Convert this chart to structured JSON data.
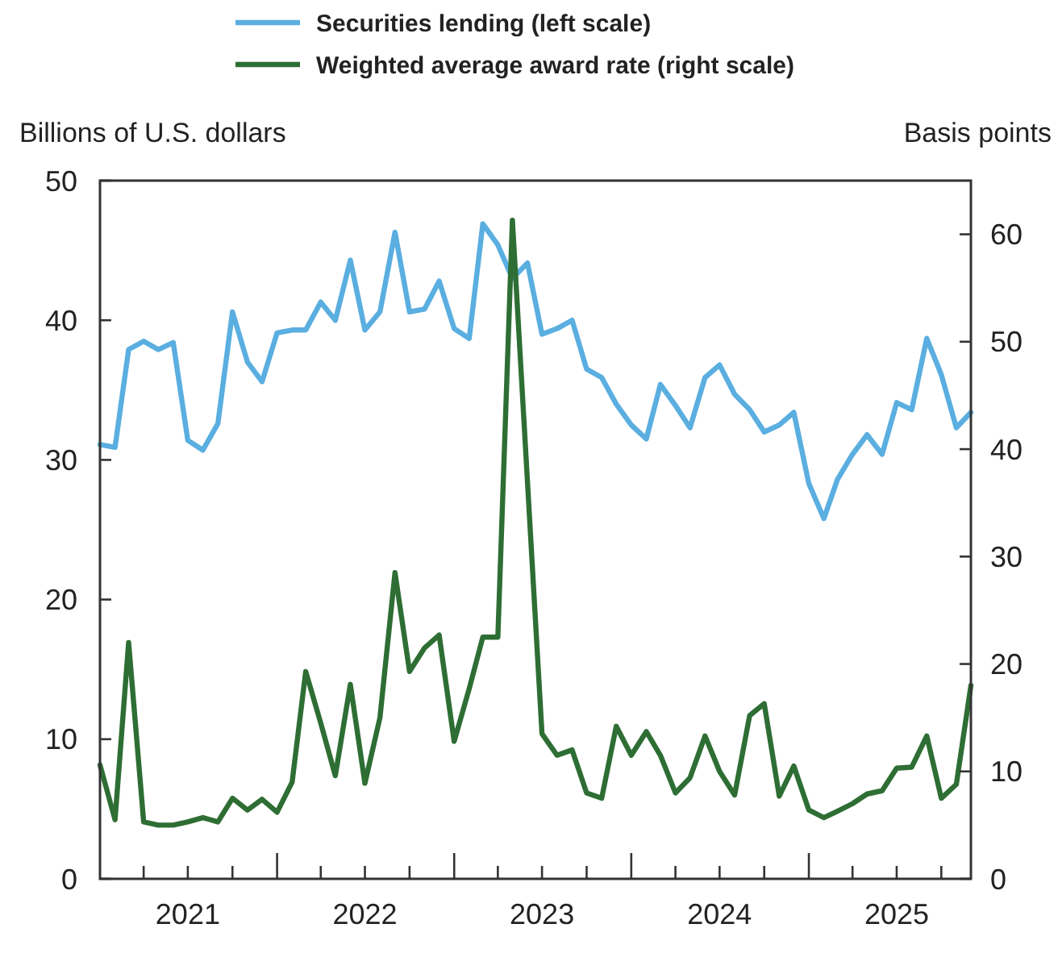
{
  "chart_data": {
    "type": "line",
    "ylabel": "Billions of U.S. dollars",
    "y2label": "Basis points",
    "x": [
      "2021-01",
      "2021-02",
      "2021-03",
      "2021-04",
      "2021-05",
      "2021-06",
      "2021-07",
      "2021-08",
      "2021-09",
      "2021-10",
      "2021-11",
      "2021-12",
      "2022-01",
      "2022-02",
      "2022-03",
      "2022-04",
      "2022-05",
      "2022-06",
      "2022-07",
      "2022-08",
      "2022-09",
      "2022-10",
      "2022-11",
      "2022-12",
      "2023-01",
      "2023-02",
      "2023-03",
      "2023-04",
      "2023-05",
      "2023-06",
      "2023-07",
      "2023-08",
      "2023-09",
      "2023-10",
      "2023-11",
      "2023-12",
      "2024-01",
      "2024-02",
      "2024-03",
      "2024-04",
      "2024-05",
      "2024-06",
      "2024-07",
      "2024-08",
      "2024-09",
      "2024-10",
      "2024-11",
      "2024-12",
      "2025-01",
      "2025-02",
      "2025-03",
      "2025-04",
      "2025-05",
      "2025-06",
      "2025-07",
      "2025-08",
      "2025-09",
      "2025-10",
      "2025-11",
      "2025-12"
    ],
    "series": [
      {
        "name": "Securities lending (left scale)",
        "color": "#5aaee0",
        "values": [
          31.1,
          30.9,
          37.9,
          38.5,
          37.9,
          38.4,
          31.4,
          30.7,
          32.6,
          40.6,
          37.0,
          35.6,
          39.1,
          39.3,
          39.3,
          41.3,
          40.0,
          44.3,
          39.3,
          40.6,
          46.3,
          40.6,
          40.8,
          42.8,
          39.4,
          38.7,
          46.9,
          45.4,
          43.0,
          44.1,
          39.0,
          39.4,
          40.0,
          36.5,
          35.9,
          34.0,
          32.5,
          31.5,
          35.4,
          33.9,
          32.3,
          35.9,
          36.8,
          34.7,
          33.6,
          32.0,
          32.5,
          33.4,
          28.3,
          25.8,
          28.6,
          30.4,
          31.8,
          30.4,
          34.1,
          33.6,
          38.7,
          36.1,
          32.3,
          33.4
        ]
      },
      {
        "name": "Weighted average award rate (right scale)",
        "color": "#2e6e34",
        "axis": "y2",
        "values": [
          10.6,
          5.5,
          22.0,
          5.3,
          5.0,
          5.0,
          5.3,
          5.7,
          5.3,
          7.5,
          6.4,
          7.4,
          6.2,
          9.0,
          19.3,
          14.5,
          9.6,
          18.1,
          8.9,
          15.0,
          28.5,
          19.3,
          21.5,
          22.7,
          12.8,
          17.7,
          22.5,
          22.5,
          61.3,
          37.0,
          13.5,
          11.5,
          12.0,
          8.0,
          7.5,
          14.2,
          11.5,
          13.7,
          11.5,
          8.0,
          9.4,
          13.3,
          10.0,
          7.8,
          15.2,
          16.3,
          7.7,
          10.5,
          6.4,
          5.7,
          6.3,
          7.0,
          7.9,
          8.2,
          10.3,
          10.4,
          13.3,
          7.5,
          8.8,
          18.0
        ]
      }
    ],
    "xlim": [
      "2021-01",
      "2025-12"
    ],
    "xticks": [
      {
        "value": "2021-04",
        "label": null
      },
      {
        "value": "2021-07",
        "label": "2021"
      },
      {
        "value": "2021-10",
        "label": null
      },
      {
        "value": "2022-01",
        "label": null
      },
      {
        "value": "2022-04",
        "label": null
      },
      {
        "value": "2022-07",
        "label": "2022"
      },
      {
        "value": "2022-10",
        "label": null
      },
      {
        "value": "2023-01",
        "label": null
      },
      {
        "value": "2023-04",
        "label": null
      },
      {
        "value": "2023-07",
        "label": "2023"
      },
      {
        "value": "2023-10",
        "label": null
      },
      {
        "value": "2024-01",
        "label": null
      },
      {
        "value": "2024-04",
        "label": null
      },
      {
        "value": "2024-07",
        "label": "2024"
      },
      {
        "value": "2024-10",
        "label": null
      },
      {
        "value": "2025-01",
        "label": null
      },
      {
        "value": "2025-04",
        "label": null
      },
      {
        "value": "2025-07",
        "label": "2025"
      },
      {
        "value": "2025-10",
        "label": null
      }
    ],
    "ylim": [
      0,
      50
    ],
    "yticks": [
      0,
      10,
      20,
      30,
      40,
      50
    ],
    "y2lim": [
      0,
      65
    ],
    "y2ticks": [
      0,
      10,
      20,
      30,
      40,
      50,
      60
    ],
    "legend": "top",
    "grid": false,
    "marker": "none",
    "line_style": "solid"
  }
}
